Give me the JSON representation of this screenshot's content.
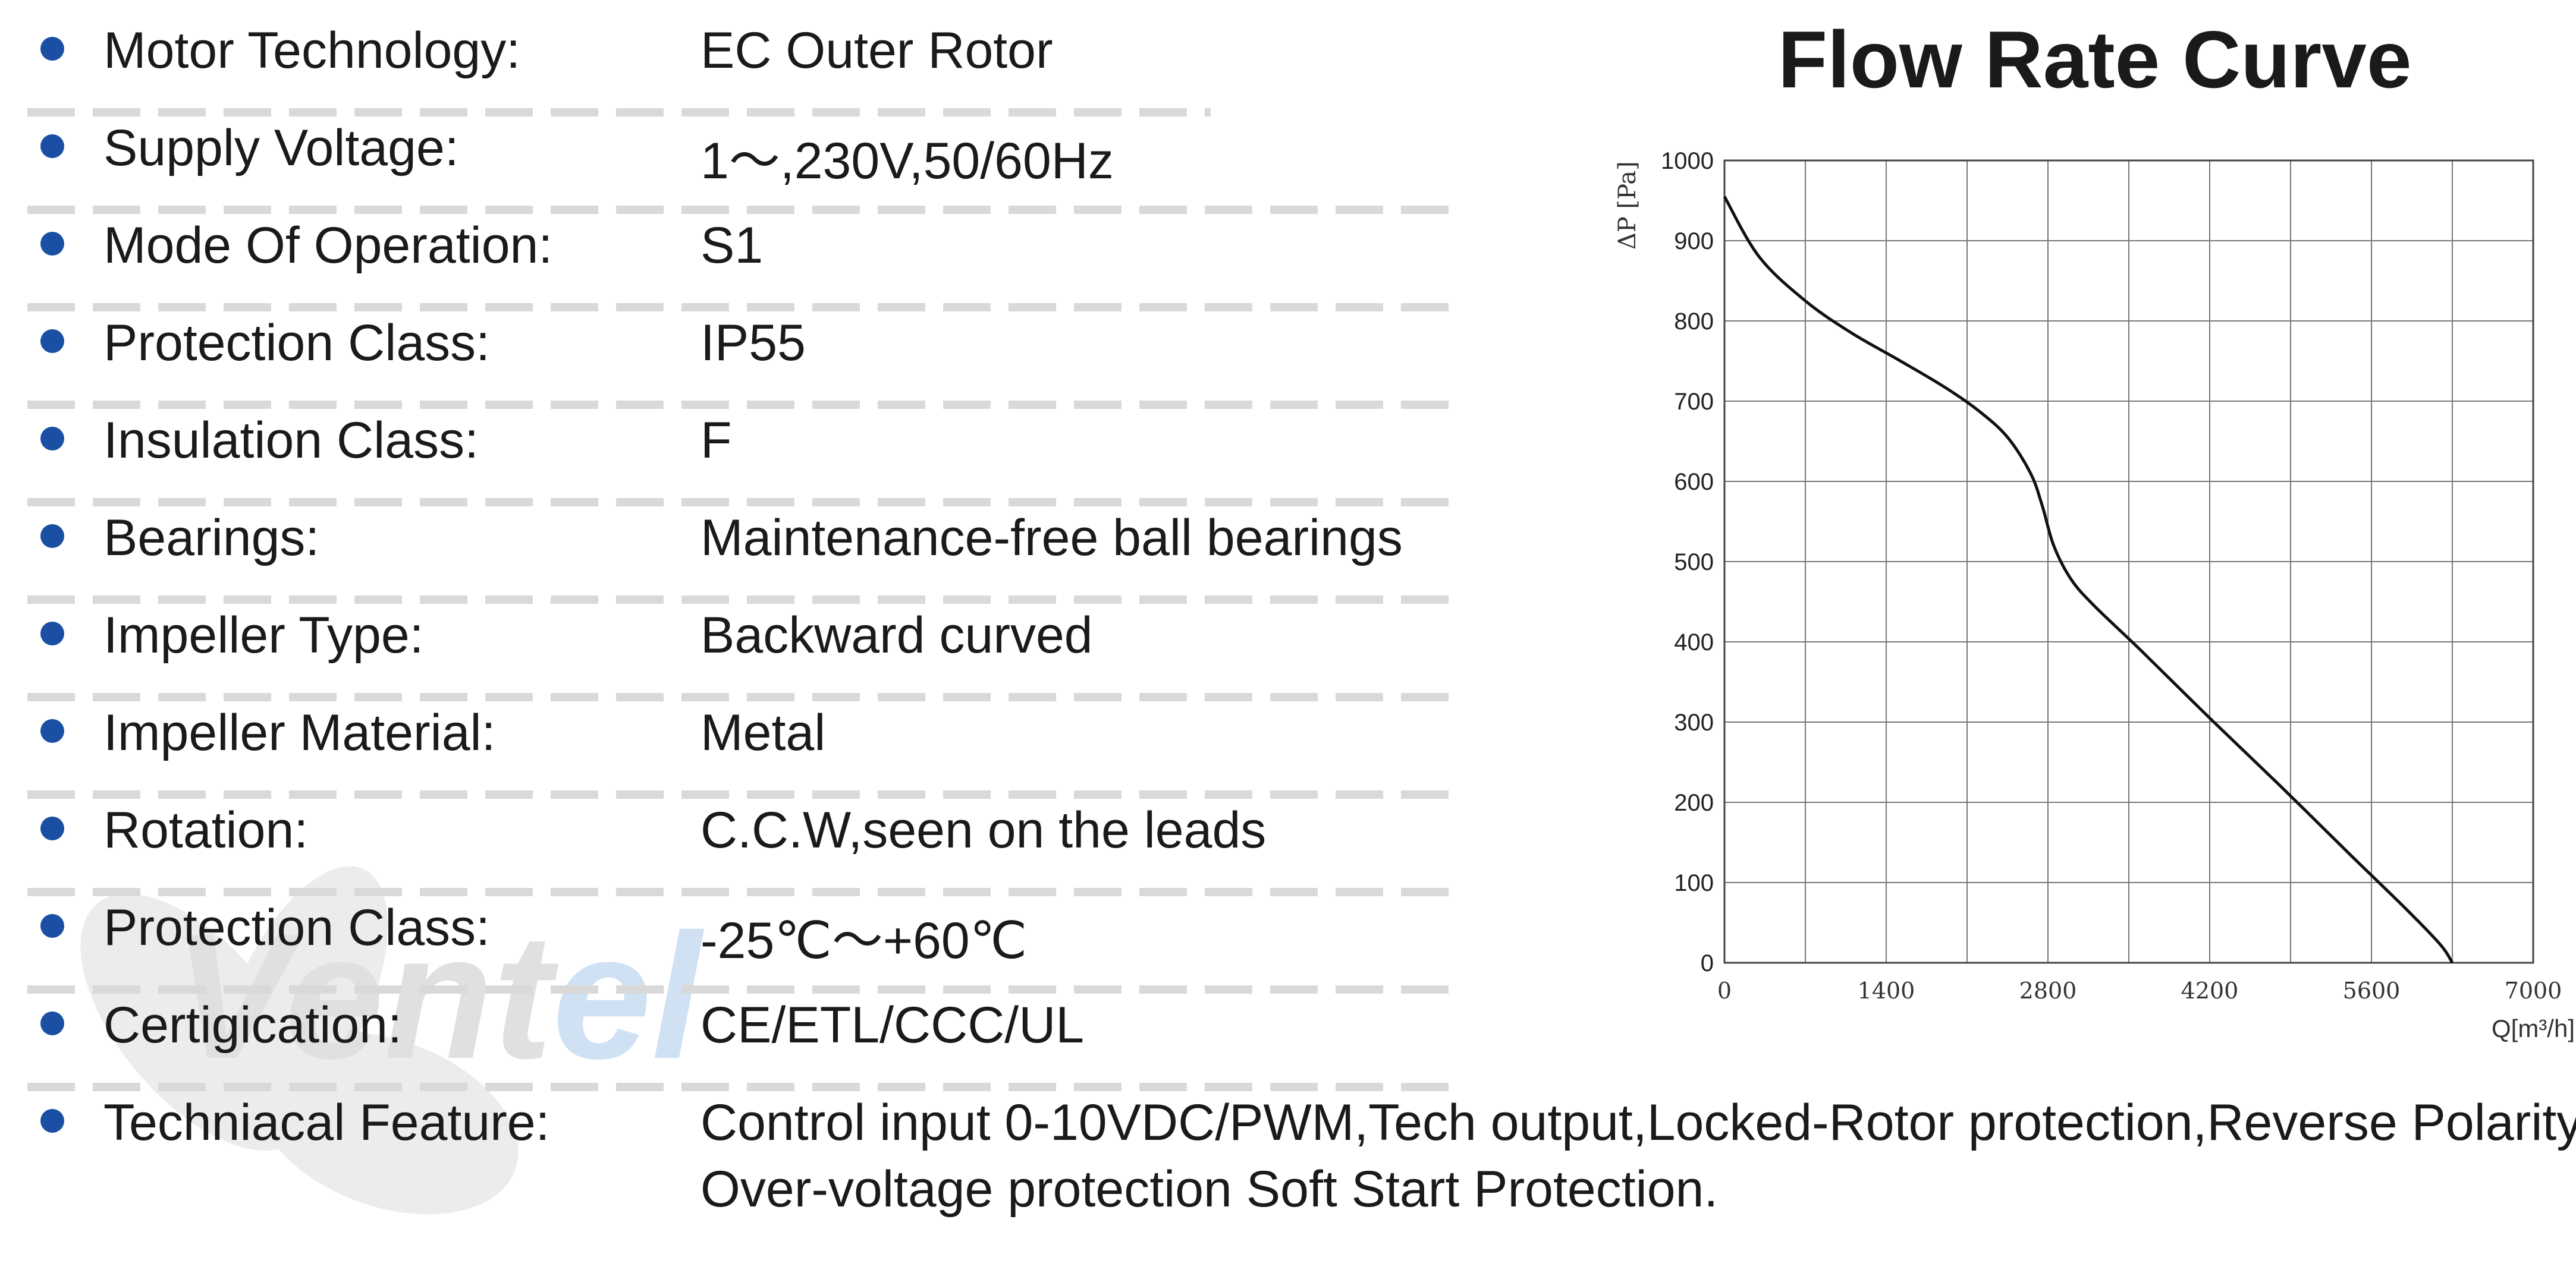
{
  "colors": {
    "bullet": "#1a4fa3",
    "text": "#1a1a1a",
    "divider": "#d9d9d9",
    "watermark": "#e3e3e3"
  },
  "watermark": {
    "text": "Vent",
    "text_accent": "el"
  },
  "specs": [
    {
      "label": "Motor Technology:",
      "value": "EC Outer Rotor"
    },
    {
      "label": "Supply Voltage:",
      "value": "1～,230V,50/60Hz"
    },
    {
      "label": "Mode Of Operation:",
      "value": "S1"
    },
    {
      "label": "Protection Class:",
      "value": "IP55"
    },
    {
      "label": "Insulation Class:",
      "value": "F"
    },
    {
      "label": "Bearings:",
      "value": "Maintenance-free ball bearings"
    },
    {
      "label": "Impeller Type:",
      "value": "Backward curved"
    },
    {
      "label": "Impeller Material:",
      "value": "Metal"
    },
    {
      "label": "Rotation:",
      "value": "C.C.W,seen on the leads"
    },
    {
      "label": "Protection Class:",
      "value": "-25℃～+60℃"
    },
    {
      "label": "Certigication:",
      "value": "CE/ETL/CCC/UL"
    },
    {
      "label": "Techniacal Feature:",
      "value": "Control input 0-10VDC/PWM,Tech output,Locked-Rotor protection,Reverse Polarity",
      "value_line2": "Over-voltage protection Soft Start Protection."
    }
  ],
  "chart_data": {
    "type": "line",
    "title": "Flow Rate Curve",
    "xlabel": "Q[m³/h]",
    "ylabel": "ΔP [Pa]",
    "xlim": [
      0,
      7000
    ],
    "ylim": [
      0,
      1000
    ],
    "x_ticks": [
      0,
      1400,
      2800,
      4200,
      5600,
      7000
    ],
    "y_ticks": [
      0,
      100,
      200,
      300,
      400,
      500,
      600,
      700,
      800,
      900,
      1000
    ],
    "grid": true,
    "series": [
      {
        "x": [
          0,
          300,
          700,
          1100,
          1500,
          1900,
          2200,
          2450,
          2650,
          2750,
          2850,
          3000,
          3200,
          3600,
          4200,
          4800,
          5400,
          5900,
          6200,
          6300
        ],
        "y": [
          955,
          880,
          825,
          785,
          752,
          718,
          688,
          655,
          610,
          570,
          520,
          478,
          445,
          390,
          305,
          222,
          137,
          67,
          22,
          0
        ]
      }
    ]
  }
}
